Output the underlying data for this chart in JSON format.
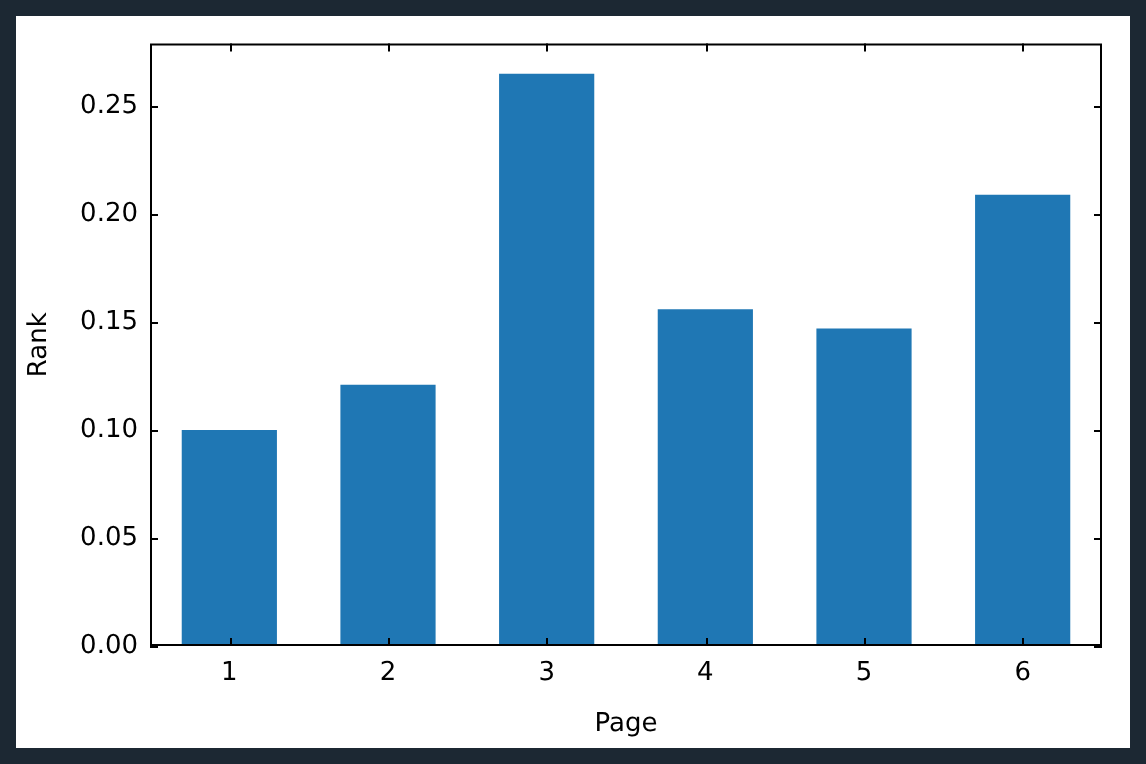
{
  "chart_data": {
    "type": "bar",
    "xlabel": "Page",
    "ylabel": "Rank",
    "categories": [
      "1",
      "2",
      "3",
      "4",
      "5",
      "6"
    ],
    "values": [
      0.1,
      0.121,
      0.265,
      0.156,
      0.147,
      0.209
    ],
    "color": "#1f77b4",
    "ylim": [
      0,
      0.279
    ],
    "yticks": [
      {
        "value": 0,
        "label": "0.00"
      },
      {
        "value": 0.05,
        "label": "0.05"
      },
      {
        "value": 0.1,
        "label": "0.10"
      },
      {
        "value": 0.15,
        "label": "0.15"
      },
      {
        "value": 0.2,
        "label": "0.20"
      },
      {
        "value": 0.25,
        "label": "0.25"
      }
    ]
  }
}
